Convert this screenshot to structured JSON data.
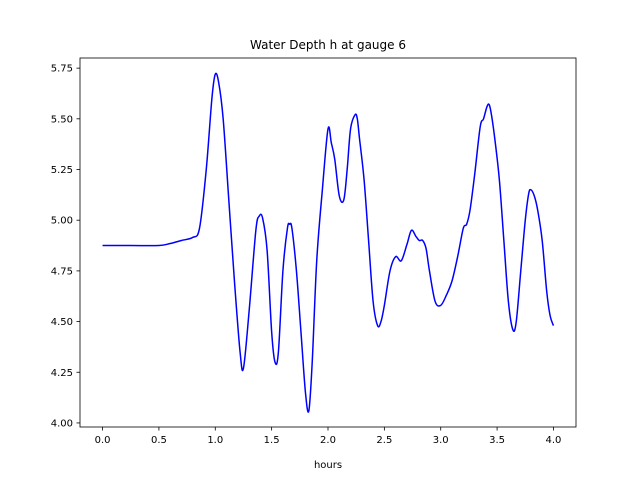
{
  "chart_data": {
    "type": "line",
    "title": "Water Depth h at gauge 6",
    "xlabel": "hours",
    "ylabel": "",
    "xlim": [
      -0.2,
      4.2
    ],
    "ylim": [
      3.98,
      5.8
    ],
    "xticks": [
      0.0,
      0.5,
      1.0,
      1.5,
      2.0,
      2.5,
      3.0,
      3.5,
      4.0
    ],
    "xtick_labels": [
      "0.0",
      "0.5",
      "1.0",
      "1.5",
      "2.0",
      "2.5",
      "3.0",
      "3.5",
      "4.0"
    ],
    "yticks": [
      4.0,
      4.25,
      4.5,
      4.75,
      5.0,
      5.25,
      5.5,
      5.75
    ],
    "ytick_labels": [
      "4.00",
      "4.25",
      "4.50",
      "4.75",
      "5.00",
      "5.25",
      "5.50",
      "5.75"
    ],
    "grid": false,
    "legend": "none",
    "series": [
      {
        "color": "#0000ff",
        "x": [
          0.0,
          0.25,
          0.5,
          0.6,
          0.7,
          0.8,
          0.86,
          0.92,
          0.97,
          1.0,
          1.03,
          1.07,
          1.12,
          1.17,
          1.22,
          1.25,
          1.3,
          1.36,
          1.39,
          1.42,
          1.46,
          1.5,
          1.53,
          1.56,
          1.6,
          1.64,
          1.66,
          1.68,
          1.72,
          1.76,
          1.8,
          1.83,
          1.86,
          1.9,
          1.95,
          2.0,
          2.03,
          2.06,
          2.1,
          2.14,
          2.17,
          2.2,
          2.24,
          2.26,
          2.28,
          2.32,
          2.36,
          2.4,
          2.44,
          2.47,
          2.5,
          2.55,
          2.6,
          2.65,
          2.7,
          2.74,
          2.78,
          2.81,
          2.84,
          2.87,
          2.9,
          2.95,
          3.0,
          3.05,
          3.1,
          3.15,
          3.2,
          3.23,
          3.26,
          3.3,
          3.35,
          3.38,
          3.41,
          3.43,
          3.45,
          3.48,
          3.52,
          3.56,
          3.6,
          3.64,
          3.67,
          3.71,
          3.75,
          3.78,
          3.8,
          3.83,
          3.86,
          3.9,
          3.94,
          3.97,
          4.0
        ],
        "y": [
          4.875,
          4.875,
          4.875,
          4.885,
          4.9,
          4.915,
          4.96,
          5.25,
          5.6,
          5.72,
          5.68,
          5.5,
          5.1,
          4.7,
          4.35,
          4.27,
          4.55,
          4.95,
          5.02,
          5.01,
          4.85,
          4.45,
          4.3,
          4.35,
          4.75,
          4.96,
          4.98,
          4.96,
          4.75,
          4.45,
          4.15,
          4.06,
          4.3,
          4.8,
          5.15,
          5.45,
          5.38,
          5.3,
          5.12,
          5.1,
          5.25,
          5.45,
          5.52,
          5.5,
          5.4,
          5.2,
          4.9,
          4.6,
          4.48,
          4.5,
          4.58,
          4.75,
          4.82,
          4.8,
          4.88,
          4.95,
          4.92,
          4.9,
          4.9,
          4.86,
          4.75,
          4.6,
          4.58,
          4.63,
          4.7,
          4.82,
          4.96,
          4.98,
          5.05,
          5.22,
          5.46,
          5.5,
          5.56,
          5.57,
          5.52,
          5.4,
          5.2,
          4.9,
          4.6,
          4.46,
          4.5,
          4.75,
          5.0,
          5.13,
          5.15,
          5.12,
          5.05,
          4.9,
          4.65,
          4.53,
          4.48
        ]
      }
    ]
  }
}
